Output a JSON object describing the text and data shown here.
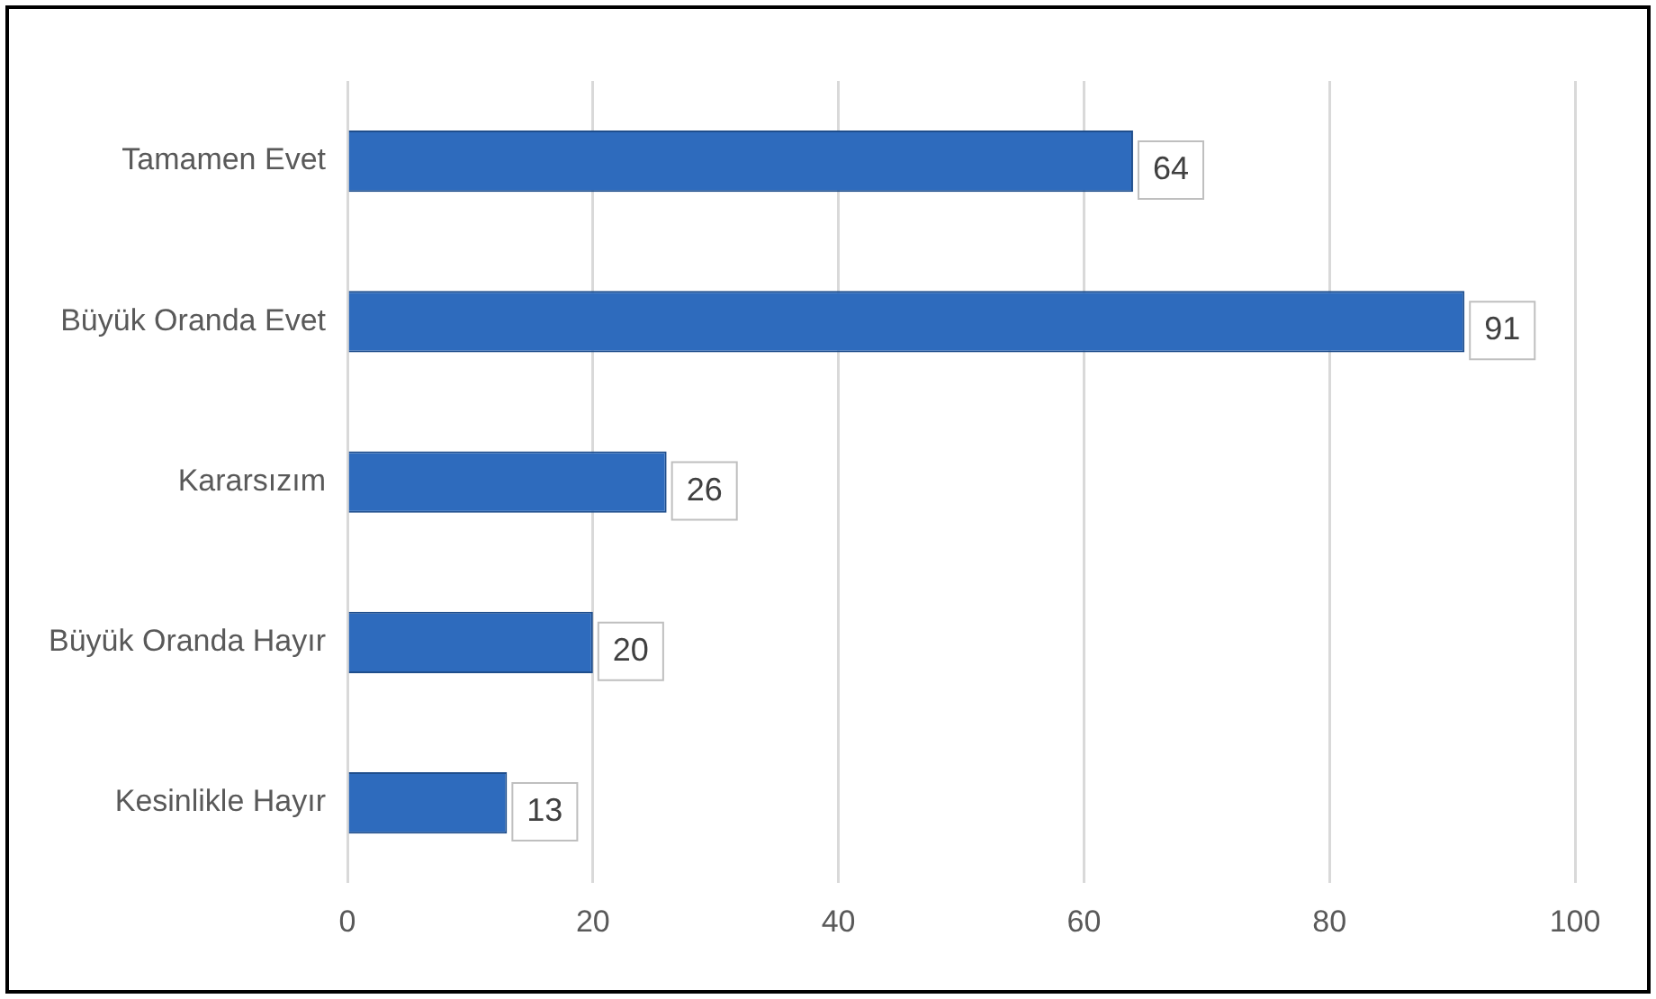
{
  "chart_data": {
    "type": "bar",
    "orientation": "horizontal",
    "categories": [
      "Tamamen Evet",
      "Büyük Oranda Evet",
      "Kararsızım",
      "Büyük Oranda Hayır",
      "Kesinlikle Hayır"
    ],
    "values": [
      64,
      91,
      26,
      20,
      13
    ],
    "color": "#2e6bbd",
    "xlim": [
      0,
      100
    ],
    "xticks": [
      0,
      20,
      40,
      60,
      80,
      100
    ],
    "grid": "x",
    "data_labels": true,
    "legend": false
  }
}
